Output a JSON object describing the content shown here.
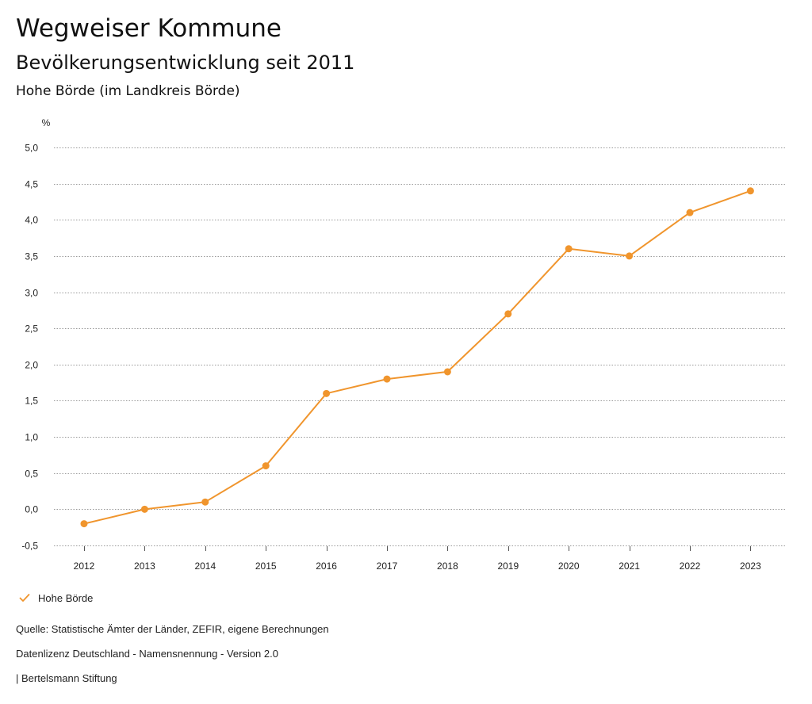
{
  "header": {
    "title": "Wegweiser Kommune",
    "subtitle": "Bevölkerungsentwicklung seit 2011",
    "region": "Hohe Börde (im Landkreis Börde)"
  },
  "chart_data": {
    "type": "line",
    "title": "Bevölkerungsentwicklung seit 2011",
    "xlabel": "",
    "ylabel": "%",
    "categories": [
      "2012",
      "2013",
      "2014",
      "2015",
      "2016",
      "2017",
      "2018",
      "2019",
      "2020",
      "2021",
      "2022",
      "2023"
    ],
    "series": [
      {
        "name": "Hohe Börde",
        "values": [
          -0.2,
          0.0,
          0.1,
          0.6,
          1.6,
          1.8,
          1.9,
          2.7,
          3.6,
          3.5,
          4.1,
          4.4
        ],
        "color": "#f0952d"
      }
    ],
    "ylim": [
      -0.5,
      5.0
    ],
    "yticks": [
      -0.5,
      0.0,
      0.5,
      1.0,
      1.5,
      2.0,
      2.5,
      3.0,
      3.5,
      4.0,
      4.5,
      5.0
    ],
    "ytick_labels": [
      "-0,5",
      "0,0",
      "0,5",
      "1,0",
      "1,5",
      "2,0",
      "2,5",
      "3,0",
      "3,5",
      "4,0",
      "4,5",
      "5,0"
    ],
    "grid": true,
    "legend": "bottom-left"
  },
  "legend": {
    "label": "Hohe Börde",
    "icon": "check-icon"
  },
  "footer": {
    "source": "Quelle: Statistische Ämter der Länder, ZEFIR, eigene Berechnungen",
    "license": "Datenlizenz Deutschland - Namensnennung - Version 2.0",
    "publisher": "| Bertelsmann Stiftung"
  }
}
